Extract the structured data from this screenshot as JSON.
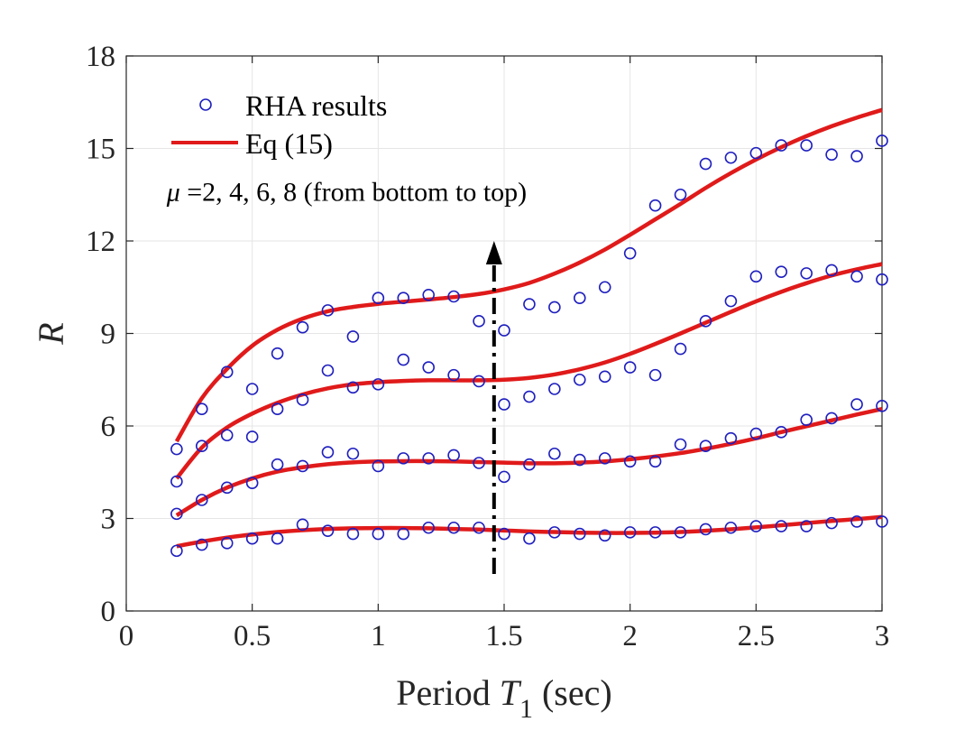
{
  "chart_data": {
    "type": "line",
    "title": "",
    "xlabel_prefix": "Period ",
    "xlabel_var": "T",
    "xlabel_sub": "1",
    "xlabel_suffix": " (sec)",
    "ylabel": "R",
    "xlim": [
      0,
      3
    ],
    "ylim": [
      0,
      18
    ],
    "xticks": [
      0,
      0.5,
      1,
      1.5,
      2,
      2.5,
      3
    ],
    "xtick_labels": [
      "0",
      "0.5",
      "1",
      "1.5",
      "2",
      "2.5",
      "3"
    ],
    "yticks": [
      0,
      3,
      6,
      9,
      12,
      15,
      18
    ],
    "ytick_labels": [
      "0",
      "3",
      "6",
      "9",
      "12",
      "15",
      "18"
    ],
    "grid": true,
    "legend": {
      "placement": "top-left",
      "entries": [
        {
          "label": "RHA results",
          "marker": "circle",
          "color": "#1f1fbf"
        },
        {
          "label": "Eq (15)",
          "marker": "line",
          "color": "#e01a1a"
        }
      ]
    },
    "annotations": [
      {
        "text_mu": "μ",
        "text_rest": " =2, 4, 6, 8 (from bottom to top)",
        "x": 0.16,
        "y": 13.3
      },
      {
        "type": "arrow",
        "style": "dash-dot",
        "color": "#000000",
        "x": 1.46,
        "y_from": 1.2,
        "y_to": 12.0
      }
    ],
    "x": [
      0.2,
      0.3,
      0.4,
      0.5,
      0.6,
      0.7,
      0.8,
      0.9,
      1.0,
      1.1,
      1.2,
      1.3,
      1.4,
      1.5,
      1.6,
      1.7,
      1.8,
      1.9,
      2.0,
      2.1,
      2.2,
      2.3,
      2.4,
      2.5,
      2.6,
      2.7,
      2.8,
      2.9,
      3.0
    ],
    "series": [
      {
        "mu": 2,
        "rha": [
          1.95,
          2.15,
          2.2,
          2.35,
          2.35,
          2.8,
          2.6,
          2.5,
          2.5,
          2.5,
          2.7,
          2.7,
          2.7,
          2.5,
          2.35,
          2.55,
          2.5,
          2.45,
          2.55,
          2.55,
          2.55,
          2.65,
          2.7,
          2.75,
          2.75,
          2.75,
          2.85,
          2.9,
          2.9
        ],
        "eq": [
          2.1,
          2.25,
          2.38,
          2.48,
          2.56,
          2.62,
          2.66,
          2.68,
          2.69,
          2.69,
          2.68,
          2.66,
          2.64,
          2.61,
          2.58,
          2.56,
          2.54,
          2.53,
          2.53,
          2.54,
          2.56,
          2.6,
          2.65,
          2.71,
          2.78,
          2.85,
          2.92,
          2.98,
          3.05
        ]
      },
      {
        "mu": 4,
        "rha": [
          3.15,
          3.6,
          4.0,
          4.15,
          4.75,
          4.7,
          5.15,
          5.1,
          4.7,
          4.95,
          4.95,
          5.05,
          4.8,
          4.35,
          4.75,
          5.1,
          4.9,
          4.95,
          4.85,
          4.85,
          5.4,
          5.35,
          5.6,
          5.75,
          5.8,
          6.2,
          6.25,
          6.7,
          6.65
        ],
        "eq": [
          3.1,
          3.6,
          4.0,
          4.3,
          4.52,
          4.66,
          4.76,
          4.82,
          4.85,
          4.86,
          4.86,
          4.85,
          4.83,
          4.81,
          4.79,
          4.79,
          4.81,
          4.85,
          4.92,
          5.01,
          5.12,
          5.26,
          5.42,
          5.6,
          5.8,
          5.99,
          6.18,
          6.37,
          6.55
        ]
      },
      {
        "mu": 6,
        "rha": [
          4.2,
          5.35,
          5.7,
          5.65,
          6.55,
          6.85,
          7.8,
          7.25,
          7.35,
          8.15,
          7.9,
          7.65,
          7.45,
          6.7,
          6.95,
          7.2,
          7.5,
          7.6,
          7.9,
          7.65,
          8.5,
          9.4,
          10.05,
          10.85,
          11.0,
          10.95,
          11.05,
          10.85,
          10.75
        ],
        "eq": [
          4.3,
          5.3,
          5.95,
          6.4,
          6.75,
          7.02,
          7.22,
          7.35,
          7.42,
          7.46,
          7.48,
          7.48,
          7.48,
          7.5,
          7.56,
          7.67,
          7.84,
          8.06,
          8.34,
          8.66,
          9.0,
          9.35,
          9.7,
          10.04,
          10.35,
          10.63,
          10.88,
          11.08,
          11.25
        ]
      },
      {
        "mu": 8,
        "rha": [
          5.25,
          6.55,
          7.75,
          7.2,
          8.35,
          9.2,
          9.75,
          8.9,
          10.15,
          10.15,
          10.25,
          10.2,
          9.4,
          9.1,
          9.95,
          9.85,
          10.15,
          10.5,
          11.6,
          13.15,
          13.5,
          14.5,
          14.7,
          14.85,
          15.1,
          15.1,
          14.8,
          14.75,
          15.25
        ],
        "eq": [
          5.5,
          6.9,
          7.85,
          8.6,
          9.12,
          9.48,
          9.72,
          9.86,
          9.96,
          10.03,
          10.1,
          10.18,
          10.28,
          10.43,
          10.64,
          10.94,
          11.3,
          11.72,
          12.2,
          12.7,
          13.2,
          13.72,
          14.2,
          14.64,
          15.04,
          15.4,
          15.72,
          16.0,
          16.25
        ]
      }
    ]
  }
}
